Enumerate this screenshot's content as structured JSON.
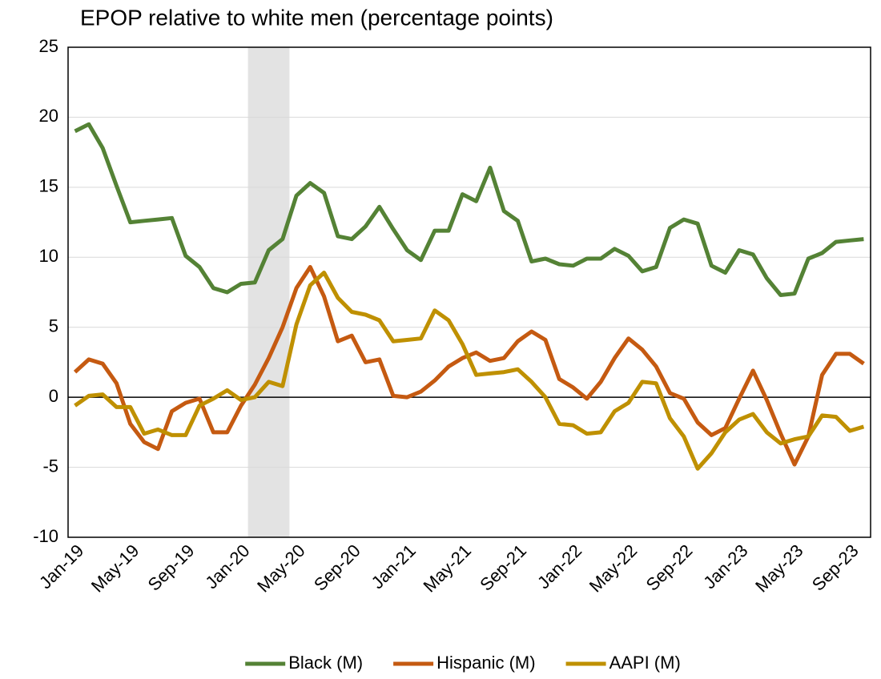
{
  "chart_data": {
    "type": "line",
    "title": "EPOP relative to white men (percentage points)",
    "categories": [
      "Jan-19",
      null,
      null,
      null,
      "May-19",
      null,
      null,
      null,
      "Sep-19",
      null,
      null,
      null,
      "Jan-20",
      null,
      null,
      null,
      "May-20",
      null,
      null,
      null,
      "Sep-20",
      null,
      null,
      null,
      "Jan-21",
      null,
      null,
      null,
      "May-21",
      null,
      null,
      null,
      "Sep-21",
      null,
      null,
      null,
      "Jan-22",
      null,
      null,
      null,
      "May-22",
      null,
      null,
      null,
      "Sep-22",
      null,
      null,
      null,
      "Jan-23",
      null,
      null,
      null,
      "May-23",
      null,
      null,
      null,
      "Sep-23",
      null
    ],
    "series": [
      {
        "name": "Black (M)",
        "color": "#548235",
        "values": [
          19.0,
          19.5,
          17.8,
          15.1,
          12.5,
          12.6,
          12.7,
          12.8,
          10.1,
          9.3,
          7.8,
          7.5,
          8.1,
          8.2,
          10.5,
          11.3,
          14.4,
          15.3,
          14.6,
          11.5,
          11.3,
          12.2,
          13.6,
          12.0,
          10.5,
          9.8,
          11.9,
          11.9,
          14.5,
          14.0,
          16.4,
          13.3,
          12.6,
          9.7,
          9.9,
          9.5,
          9.4,
          9.9,
          9.9,
          10.6,
          10.1,
          9.0,
          9.3,
          12.1,
          12.7,
          12.4,
          9.4,
          8.9,
          10.5,
          10.2,
          8.5,
          7.3,
          7.4,
          9.9,
          10.3,
          11.1,
          11.2,
          11.3
        ]
      },
      {
        "name": "Hispanic (M)",
        "color": "#c55a11",
        "values": [
          1.8,
          2.7,
          2.4,
          1.0,
          -1.9,
          -3.2,
          -3.7,
          -1.0,
          -0.4,
          -0.1,
          -2.5,
          -2.5,
          -0.6,
          0.9,
          2.8,
          5.0,
          7.8,
          9.3,
          7.2,
          4.0,
          4.4,
          2.5,
          2.7,
          0.1,
          0.0,
          0.4,
          1.2,
          2.2,
          2.8,
          3.2,
          2.6,
          2.8,
          4.0,
          4.7,
          4.1,
          1.3,
          0.7,
          -0.1,
          1.1,
          2.8,
          4.2,
          3.4,
          2.2,
          0.3,
          -0.1,
          -1.8,
          -2.7,
          -2.2,
          -0.1,
          1.9,
          -0.2,
          -2.6,
          -4.8,
          -2.8,
          1.6,
          3.1,
          3.1,
          2.4
        ]
      },
      {
        "name": "AAPI (M)",
        "color": "#bf9000",
        "values": [
          -0.6,
          0.1,
          0.2,
          -0.7,
          -0.7,
          -2.6,
          -2.3,
          -2.7,
          -2.7,
          -0.6,
          -0.1,
          0.5,
          -0.2,
          0.0,
          1.1,
          0.8,
          5.2,
          8.0,
          8.9,
          7.1,
          6.1,
          5.9,
          5.5,
          4.0,
          4.1,
          4.2,
          6.2,
          5.5,
          3.8,
          1.6,
          1.7,
          1.8,
          2.0,
          1.1,
          0.0,
          -1.9,
          -2.0,
          -2.6,
          -2.5,
          -1.0,
          -0.4,
          1.1,
          1.0,
          -1.5,
          -2.8,
          -5.1,
          -4.0,
          -2.5,
          -1.6,
          -1.2,
          -2.5,
          -3.3,
          -3.0,
          -2.8,
          -1.3,
          -1.4,
          -2.4,
          -2.1
        ]
      }
    ],
    "ylim": [
      -10,
      25
    ],
    "yticks": [
      -10,
      -5,
      0,
      5,
      10,
      15,
      20,
      25
    ],
    "grid": true,
    "legend": "bottom",
    "shaded_period": [
      13,
      16
    ]
  }
}
